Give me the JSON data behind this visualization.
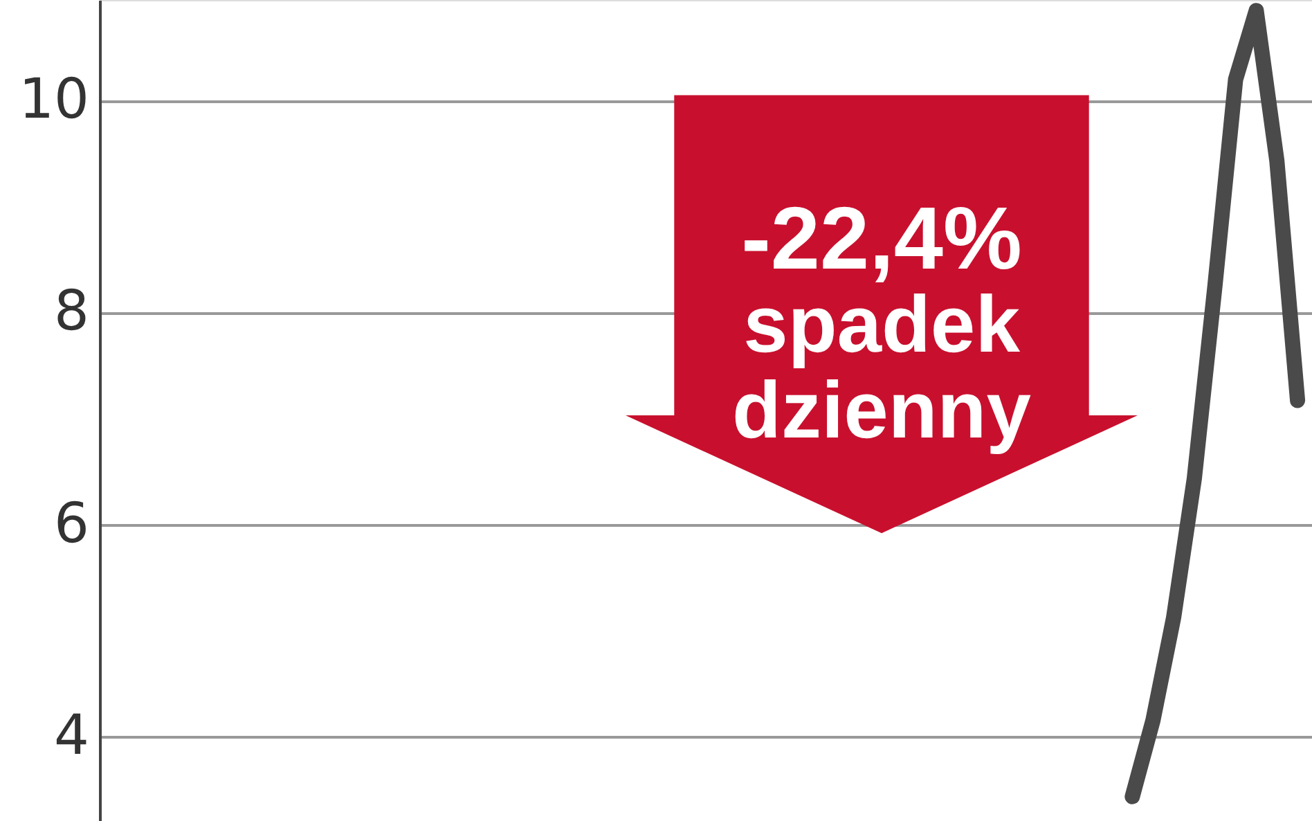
{
  "chart_data": {
    "type": "line",
    "categories": [
      null,
      null,
      null,
      null,
      null,
      null,
      null,
      null,
      null,
      null,
      null,
      null,
      null,
      null,
      null,
      null,
      null,
      null,
      null,
      null,
      null,
      null,
      null,
      null,
      null,
      null,
      null,
      null,
      null,
      null,
      null,
      null,
      null,
      null,
      null,
      null,
      null,
      null,
      null,
      null,
      null,
      null,
      null,
      null,
      null,
      null,
      null,
      null,
      null,
      null,
      null,
      null,
      null,
      null,
      null,
      null,
      null,
      null,
      null
    ],
    "series": [
      {
        "color": "#4a4a4a",
        "values": [
          null,
          null,
          null,
          null,
          null,
          null,
          null,
          null,
          null,
          null,
          null,
          null,
          null,
          null,
          null,
          null,
          null,
          null,
          null,
          null,
          null,
          null,
          null,
          null,
          null,
          null,
          null,
          null,
          null,
          null,
          null,
          null,
          null,
          null,
          null,
          null,
          null,
          null,
          null,
          null,
          null,
          null,
          null,
          null,
          null,
          null,
          null,
          null,
          null,
          null,
          3.43,
          4.15,
          5.12,
          6.43,
          8.25,
          10.2,
          10.85,
          9.43,
          7.17
        ]
      }
    ],
    "ylim": [
      3.2,
      10.95
    ],
    "yticks": [
      4,
      6,
      8,
      10
    ],
    "grid": "y",
    "tick_labels": "y",
    "line_style": "solid",
    "annotations": [
      "-22,4% spadek dzienny"
    ]
  }
}
